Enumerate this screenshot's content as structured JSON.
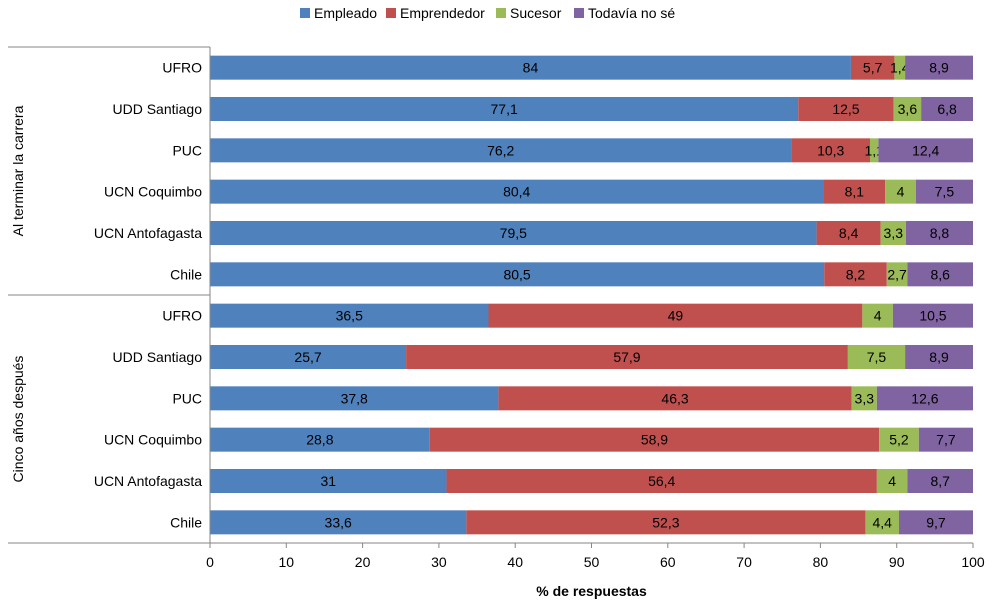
{
  "chart_data": {
    "type": "bar",
    "orientation": "horizontal",
    "stacked": true,
    "legend": {
      "position": "top",
      "entries": [
        "Empleado",
        "Emprendedor",
        "Sucesor",
        "Todavía no sé"
      ]
    },
    "xlabel": "% de respuestas",
    "xlim": [
      0,
      100
    ],
    "xticks": [
      "0",
      "10",
      "20",
      "30",
      "40",
      "50",
      "60",
      "70",
      "80",
      "90",
      "100"
    ],
    "colors": [
      "#4F81BD",
      "#C0504D",
      "#9BBB59",
      "#8064A2"
    ],
    "grid": false,
    "groups": [
      {
        "label": "Al terminar la carrera",
        "categories": [
          "UFRO",
          "UDD Santiago",
          "PUC",
          "UCN Coquimbo",
          "UCN Antofagasta",
          "Chile"
        ],
        "series": [
          {
            "name": "Empleado",
            "values": [
              84,
              77.1,
              76.2,
              80.4,
              79.5,
              80.5
            ],
            "labels": [
              "84",
              "77,1",
              "76,2",
              "80,4",
              "79,5",
              "80,5"
            ]
          },
          {
            "name": "Emprendedor",
            "values": [
              5.7,
              12.5,
              10.3,
              8.1,
              8.4,
              8.2
            ],
            "labels": [
              "5,7",
              "12,5",
              "10,3",
              "8,1",
              "8,4",
              "8,2"
            ]
          },
          {
            "name": "Sucesor",
            "values": [
              1.4,
              3.6,
              1.1,
              4,
              3.3,
              2.7
            ],
            "labels": [
              "1,4",
              "3,6",
              "1,1",
              "4",
              "3,3",
              "2,7"
            ]
          },
          {
            "name": "Todavía no sé",
            "values": [
              8.9,
              6.8,
              12.4,
              7.5,
              8.8,
              8.6
            ],
            "labels": [
              "8,9",
              "6,8",
              "12,4",
              "7,5",
              "8,8",
              "8,6"
            ]
          }
        ]
      },
      {
        "label": "Cinco años después",
        "categories": [
          "UFRO",
          "UDD Santiago",
          "PUC",
          "UCN Coquimbo",
          "UCN Antofagasta",
          "Chile"
        ],
        "series": [
          {
            "name": "Empleado",
            "values": [
              36.5,
              25.7,
              37.8,
              28.8,
              31,
              33.6
            ],
            "labels": [
              "36,5",
              "25,7",
              "37,8",
              "28,8",
              "31",
              "33,6"
            ]
          },
          {
            "name": "Emprendedor",
            "values": [
              49,
              57.9,
              46.3,
              58.9,
              56.4,
              52.3
            ],
            "labels": [
              "49",
              "57,9",
              "46,3",
              "58,9",
              "56,4",
              "52,3"
            ]
          },
          {
            "name": "Sucesor",
            "values": [
              4,
              7.5,
              3.3,
              5.2,
              4,
              4.4
            ],
            "labels": [
              "4",
              "7,5",
              "3,3",
              "5,2",
              "4",
              "4,4"
            ]
          },
          {
            "name": "Todavía no sé",
            "values": [
              10.5,
              8.9,
              12.6,
              7.7,
              8.7,
              9.7
            ],
            "labels": [
              "10,5",
              "8,9",
              "12,6",
              "7,7",
              "8,7",
              "9,7"
            ]
          }
        ]
      }
    ]
  }
}
